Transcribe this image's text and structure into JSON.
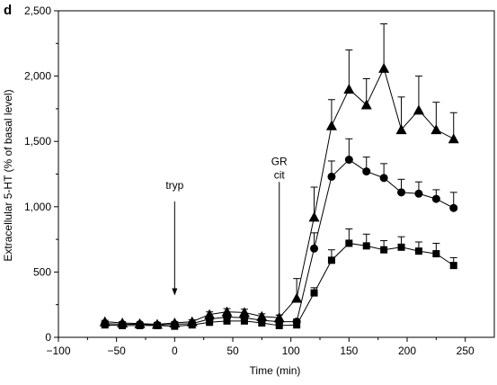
{
  "chart_data": {
    "type": "line",
    "panel_label": "d",
    "xlabel": "Time (min)",
    "ylabel": "Extracellular 5-HT (% of basal level)",
    "xlim": [
      -100,
      275
    ],
    "ylim": [
      0,
      2500
    ],
    "x_ticks": [
      -100,
      -50,
      0,
      50,
      100,
      150,
      200,
      250
    ],
    "x_tick_labels": [
      "−100",
      "−50",
      "0",
      "50",
      "100",
      "150",
      "200",
      "250"
    ],
    "y_ticks": [
      0,
      500,
      1000,
      1500,
      2000,
      2500
    ],
    "y_tick_labels": [
      "0",
      "500",
      "1,000",
      "1,500",
      "2,000",
      "2,500"
    ],
    "grid": false,
    "legend": "none",
    "annotations": [
      {
        "text": "tryp",
        "x": 0,
        "label_y": 1135,
        "arrow_from": 1040,
        "arrow_to": 320
      },
      {
        "lines": [
          "GR",
          "cit"
        ],
        "x": 90,
        "label_y": 1320,
        "arrow_from": 1190,
        "arrow_to": 120
      }
    ],
    "series": [
      {
        "marker": "triangle",
        "x": [
          -60,
          -45,
          -30,
          -15,
          0,
          15,
          30,
          45,
          60,
          75,
          90,
          105,
          120,
          135,
          150,
          165,
          180,
          195,
          210,
          225,
          240
        ],
        "y": [
          120,
          110,
          105,
          100,
          110,
          120,
          175,
          195,
          190,
          160,
          150,
          300,
          920,
          1620,
          1900,
          1780,
          2060,
          1590,
          1740,
          1590,
          1520
        ],
        "err": [
          10,
          10,
          10,
          10,
          10,
          15,
          20,
          25,
          25,
          20,
          20,
          150,
          230,
          200,
          300,
          200,
          340,
          250,
          260,
          210,
          200
        ]
      },
      {
        "marker": "circle",
        "x": [
          -60,
          -45,
          -30,
          -15,
          0,
          15,
          30,
          45,
          60,
          75,
          90,
          105,
          120,
          135,
          150,
          165,
          180,
          195,
          210,
          225,
          240
        ],
        "y": [
          105,
          100,
          100,
          95,
          100,
          105,
          140,
          155,
          150,
          130,
          120,
          120,
          680,
          1230,
          1360,
          1270,
          1220,
          1110,
          1100,
          1060,
          990
        ],
        "err": [
          8,
          8,
          8,
          8,
          8,
          10,
          15,
          20,
          20,
          15,
          15,
          20,
          120,
          120,
          160,
          110,
          110,
          100,
          90,
          70,
          120
        ]
      },
      {
        "marker": "square",
        "x": [
          -60,
          -45,
          -30,
          -15,
          0,
          15,
          30,
          45,
          60,
          75,
          90,
          105,
          120,
          135,
          150,
          165,
          180,
          195,
          210,
          225,
          240
        ],
        "y": [
          95,
          90,
          90,
          90,
          85,
          95,
          115,
          125,
          125,
          110,
          90,
          95,
          340,
          590,
          720,
          700,
          670,
          690,
          660,
          640,
          550
        ],
        "err": [
          8,
          8,
          8,
          8,
          8,
          10,
          12,
          15,
          15,
          12,
          12,
          15,
          40,
          80,
          110,
          90,
          70,
          80,
          70,
          80,
          60
        ]
      }
    ]
  }
}
